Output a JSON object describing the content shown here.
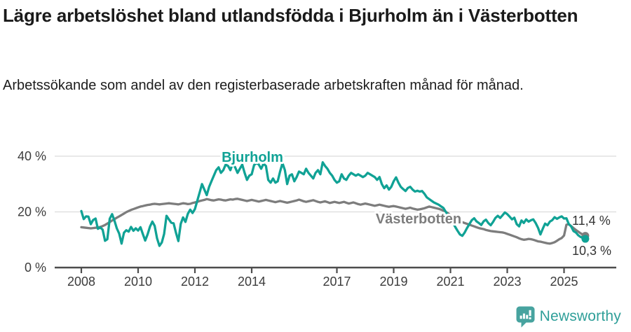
{
  "header": {
    "title": "Lägre arbetslöshet bland utlandsfödda i Bjurholm än i Västerbotten",
    "subtitle": "Arbetssökande som andel av den registerbaserade arbetskraften månad för månad."
  },
  "chart_data": {
    "type": "line",
    "unit": "%",
    "x_start_year": 2008,
    "x_interval": "monthly",
    "ylim": [
      0,
      44
    ],
    "grid": "horizontal",
    "legend_position": "inline-labels",
    "yticks": [
      {
        "value": 0,
        "label": "0 %"
      },
      {
        "value": 20,
        "label": "20 %"
      },
      {
        "value": 40,
        "label": "40 %"
      }
    ],
    "xticks": [
      2008,
      2010,
      2012,
      2014,
      2017,
      2019,
      2021,
      2023,
      2025
    ],
    "series": [
      {
        "name": "Västerbotten",
        "color": "#7d7d7d",
        "end_value": 11.4,
        "end_label": "11,4 %",
        "values": [
          14.5,
          14.4,
          14.3,
          14.2,
          14.1,
          14.2,
          14.3,
          14.4,
          14.6,
          14.9,
          15.3,
          15.8,
          16.3,
          16.9,
          17.4,
          17.9,
          18.4,
          18.9,
          19.4,
          19.9,
          20.3,
          20.7,
          21.0,
          21.3,
          21.6,
          21.9,
          22.1,
          22.3,
          22.5,
          22.6,
          22.8,
          22.9,
          22.8,
          22.7,
          22.8,
          22.9,
          23.0,
          23.1,
          23.0,
          22.9,
          22.8,
          22.7,
          22.9,
          23.1,
          23.0,
          22.8,
          22.9,
          23.2,
          23.4,
          23.6,
          23.9,
          24.1,
          24.3,
          24.6,
          24.4,
          24.2,
          24.1,
          24.3,
          24.5,
          24.4,
          24.2,
          24.1,
          24.3,
          24.5,
          24.4,
          24.6,
          24.7,
          24.5,
          24.3,
          24.1,
          23.9,
          24.1,
          24.3,
          24.1,
          23.9,
          23.7,
          23.9,
          24.1,
          24.3,
          24.1,
          23.9,
          23.7,
          23.5,
          23.7,
          23.9,
          23.7,
          23.5,
          23.3,
          23.5,
          23.7,
          23.9,
          24.1,
          24.4,
          24.1,
          23.8,
          23.6,
          23.8,
          24.0,
          24.2,
          23.9,
          23.6,
          23.4,
          23.6,
          23.8,
          23.5,
          23.2,
          23.4,
          23.6,
          23.4,
          23.2,
          23.4,
          23.6,
          23.3,
          23.0,
          23.2,
          23.4,
          23.1,
          22.8,
          22.6,
          22.8,
          23.0,
          22.8,
          22.6,
          22.4,
          22.2,
          22.4,
          22.6,
          22.4,
          22.2,
          22.0,
          21.8,
          22.0,
          22.1,
          21.9,
          21.7,
          21.5,
          21.3,
          21.1,
          21.3,
          21.5,
          21.2,
          21.0,
          20.8,
          20.9,
          21.1,
          21.3,
          21.6,
          21.9,
          21.7,
          21.5,
          21.3,
          21.1,
          20.8,
          20.4,
          20.0,
          19.5,
          18.8,
          18.2,
          17.6,
          17.1,
          16.7,
          16.3,
          16.0,
          15.7,
          15.4,
          15.1,
          14.8,
          14.5,
          14.2,
          14.0,
          13.8,
          13.5,
          13.3,
          13.1,
          13.0,
          12.9,
          12.8,
          12.7,
          12.6,
          12.4,
          12.1,
          11.8,
          11.5,
          11.2,
          10.9,
          10.5,
          10.2,
          10.0,
          10.1,
          10.3,
          10.2,
          10.0,
          9.7,
          9.4,
          9.3,
          9.1,
          8.9,
          8.7,
          8.6,
          8.8,
          9.1,
          9.6,
          10.2,
          10.6,
          11.5,
          15.4,
          15.6,
          14.9,
          14.2,
          13.5,
          12.9,
          12.3,
          11.8,
          11.4
        ]
      },
      {
        "name": "Bjurholm",
        "color": "#10a295",
        "end_value": 10.3,
        "end_label": "10,3 %",
        "values": [
          20.3,
          17.4,
          18.4,
          18.3,
          15.6,
          17.1,
          17.6,
          13.9,
          14.4,
          13.6,
          9.6,
          10.2,
          17.5,
          19.2,
          16.8,
          14.1,
          12.2,
          8.6,
          12.5,
          13.4,
          12.9,
          14.6,
          13.2,
          14.1,
          13.3,
          14.5,
          12.0,
          9.7,
          11.9,
          14.7,
          16.5,
          15.0,
          10.5,
          7.8,
          9.0,
          12.1,
          18.6,
          17.3,
          16.1,
          15.9,
          12.5,
          9.5,
          15.7,
          18.0,
          16.4,
          19.3,
          20.8,
          19.6,
          21.0,
          24.0,
          27.0,
          30.0,
          28.0,
          26.0,
          29.0,
          31.0,
          33.0,
          35.0,
          36.0,
          34.0,
          35.0,
          37.0,
          36.5,
          35.0,
          37.5,
          36.0,
          34.0,
          35.5,
          37.0,
          34.0,
          31.5,
          33.0,
          33.5,
          36.8,
          37.5,
          37.0,
          35.5,
          37.3,
          36.5,
          31.5,
          30.5,
          32.0,
          30.5,
          31.0,
          34.5,
          37.5,
          35.0,
          30.0,
          33.0,
          33.5,
          31.0,
          32.5,
          34.5,
          34.0,
          33.5,
          35.5,
          34.0,
          33.0,
          32.0,
          34.0,
          35.0,
          33.5,
          37.8,
          36.5,
          35.5,
          34.0,
          33.0,
          31.5,
          30.5,
          31.0,
          33.5,
          32.0,
          31.5,
          33.0,
          34.0,
          33.5,
          33.0,
          33.5,
          33.0,
          32.5,
          33.0,
          34.0,
          33.5,
          33.0,
          32.5,
          31.5,
          32.5,
          30.0,
          28.5,
          29.5,
          28.0,
          29.0,
          31.0,
          32.4,
          30.5,
          29.0,
          28.2,
          27.5,
          28.6,
          29.0,
          28.0,
          27.3,
          27.6,
          27.3,
          27.5,
          26.5,
          25.2,
          24.6,
          24.0,
          23.4,
          23.0,
          22.6,
          22.0,
          21.4,
          20.0,
          18.6,
          17.4,
          16.2,
          14.6,
          13.2,
          11.9,
          11.4,
          12.6,
          14.2,
          15.6,
          17.0,
          17.7,
          16.6,
          16.0,
          15.3,
          16.6,
          17.2,
          16.0,
          15.2,
          16.4,
          17.8,
          18.6,
          17.8,
          18.8,
          19.8,
          19.2,
          18.3,
          17.3,
          17.9,
          15.6,
          14.8,
          16.9,
          16.0,
          17.3,
          16.5,
          17.0,
          17.3,
          16.0,
          14.3,
          11.9,
          13.9,
          15.8,
          15.2,
          16.5,
          17.0,
          18.1,
          17.5,
          18.0,
          18.4,
          17.6,
          17.7,
          15.6,
          14.8,
          13.1,
          12.6,
          11.6,
          11.0,
          10.6,
          10.3
        ]
      }
    ]
  },
  "footer": {
    "brand": "Newsworthy"
  },
  "colors": {
    "bjurholm": "#10a295",
    "vasterbotten": "#7d7d7d",
    "axis": "#4d4d4d",
    "grid": "#dcdcdc",
    "tick_text": "#3c3c3c",
    "brand_teal": "#2f9f99",
    "logo_fill": "#47a39f"
  }
}
